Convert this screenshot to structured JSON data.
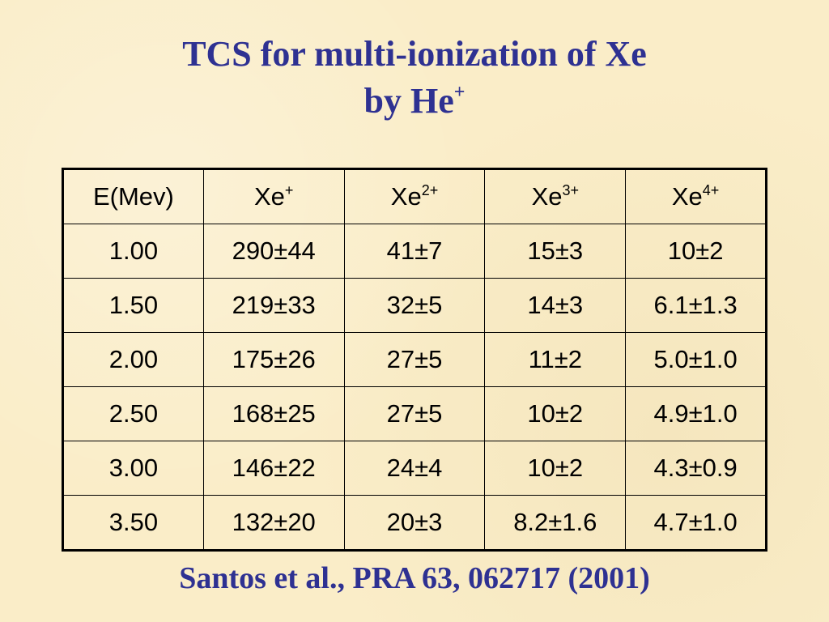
{
  "title": {
    "line1": "TCS for multi-ionization of Xe",
    "line2": "by He",
    "line2_sup": "+"
  },
  "table": {
    "header": [
      {
        "base": "E(Mev)",
        "sup": null
      },
      {
        "base": "Xe",
        "sup": "+"
      },
      {
        "base": "Xe",
        "sup": "2+"
      },
      {
        "base": "Xe",
        "sup": "3+"
      },
      {
        "base": "Xe",
        "sup": "4+"
      }
    ],
    "rows": [
      [
        "1.00",
        "290±44",
        "41±7",
        "15±3",
        "10±2"
      ],
      [
        "1.50",
        "219±33",
        "32±5",
        "14±3",
        "6.1±1.3"
      ],
      [
        "2.00",
        "175±26",
        "27±5",
        "11±2",
        "5.0±1.0"
      ],
      [
        "2.50",
        "168±25",
        "27±5",
        "10±2",
        "4.9±1.0"
      ],
      [
        "3.00",
        "146±22",
        "24±4",
        "10±2",
        "4.3±0.9"
      ],
      [
        "3.50",
        "132±20",
        "20±3",
        "8.2±1.6",
        "4.7±1.0"
      ]
    ]
  },
  "citation": "Santos et al., PRA 63, 062717 (2001)"
}
